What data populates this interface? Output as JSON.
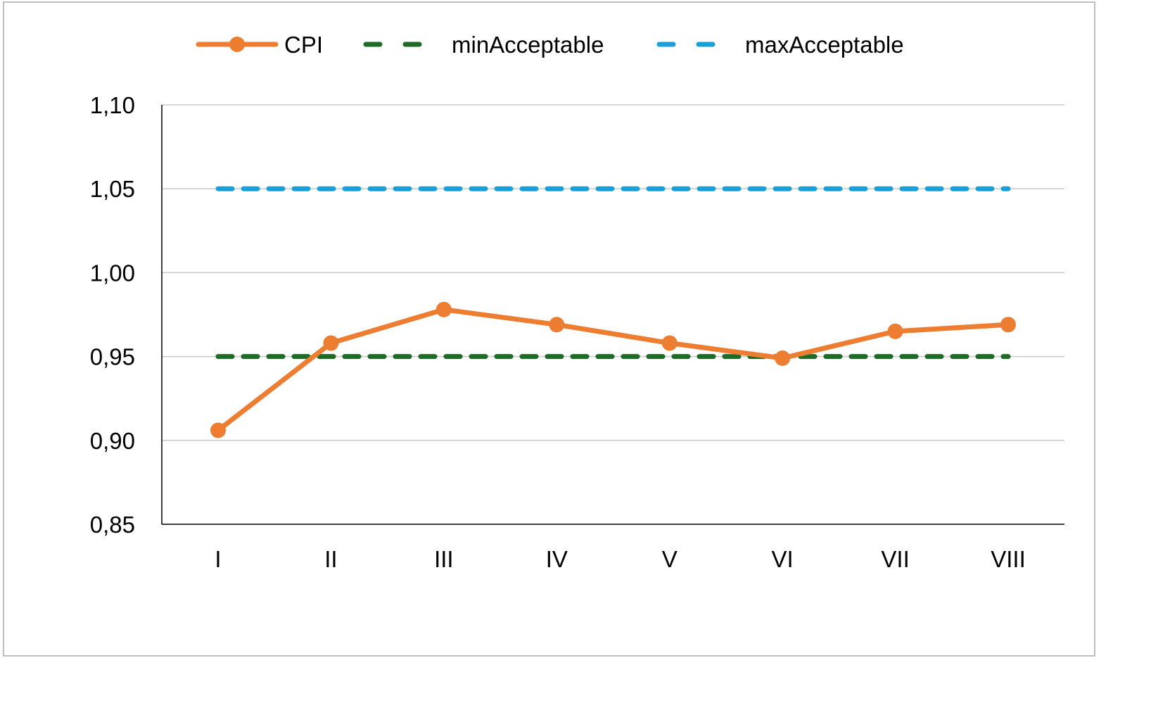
{
  "chart_data": {
    "type": "line",
    "title": "",
    "xlabel": "",
    "ylabel": "",
    "categories": [
      "I",
      "II",
      "III",
      "IV",
      "V",
      "VI",
      "VII",
      "VIII"
    ],
    "ylim": [
      0.85,
      1.1
    ],
    "yticks": [
      "0,85",
      "0,90",
      "0,95",
      "1,00",
      "1,05",
      "1,10"
    ],
    "ytick_values": [
      0.85,
      0.9,
      0.95,
      1.0,
      1.05,
      1.1
    ],
    "grid": true,
    "legend_position": "top",
    "series": [
      {
        "name": "CPI",
        "values": [
          0.906,
          0.958,
          0.978,
          0.969,
          0.958,
          0.949,
          0.965,
          0.969
        ],
        "color": "#ed7d31",
        "style": "solid-markers"
      },
      {
        "name": "minAcceptable",
        "values": [
          0.95,
          0.95,
          0.95,
          0.95,
          0.95,
          0.95,
          0.95,
          0.95
        ],
        "color": "#1e6b28",
        "style": "dashed"
      },
      {
        "name": "maxAcceptable",
        "values": [
          1.05,
          1.05,
          1.05,
          1.05,
          1.05,
          1.05,
          1.05,
          1.05
        ],
        "color": "#1aa0d8",
        "style": "dashed"
      }
    ]
  }
}
